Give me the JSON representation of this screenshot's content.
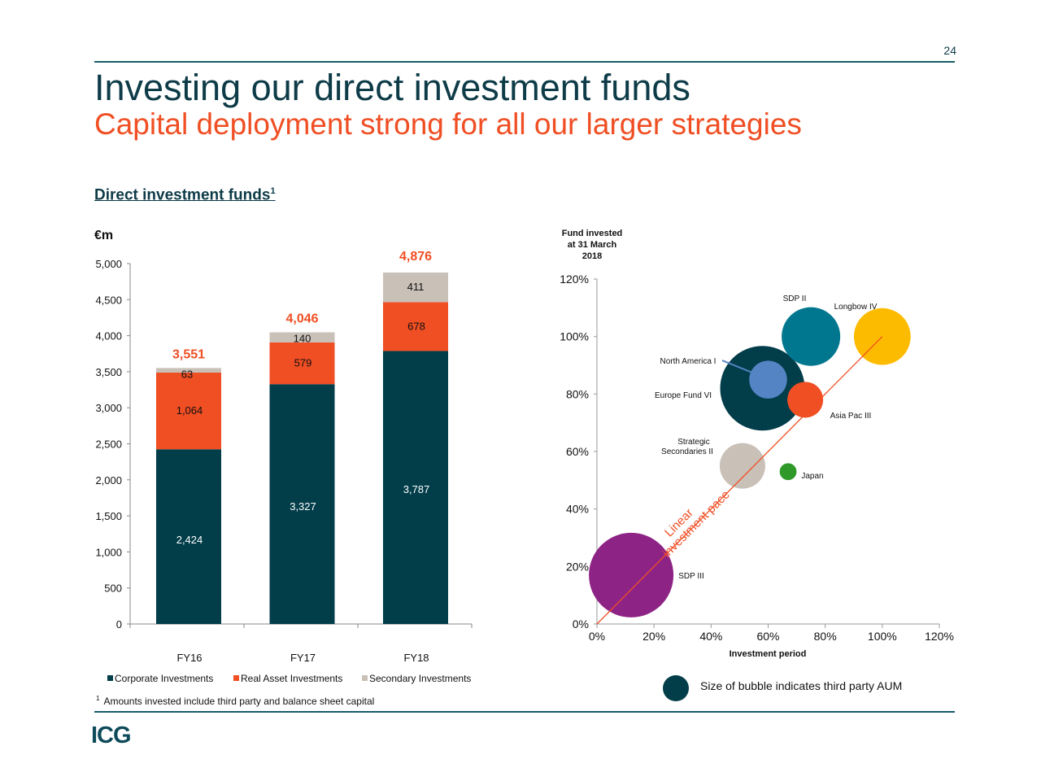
{
  "page_number": "24",
  "title": "Investing our direct investment funds",
  "subtitle": "Capital deployment strong for all our larger strategies",
  "section_heading": "Direct investment funds",
  "section_footnote_marker": "1",
  "footnote": {
    "marker": "1",
    "text": "Amounts invested include third party and balance sheet capital"
  },
  "logo": "ICG",
  "colors": {
    "brand_dark": "#0d3b47",
    "accent_orange": "#f04e23",
    "rule": "#1a5b6b"
  },
  "chart_data": [
    {
      "type": "bar",
      "stacked": true,
      "ylabel": "€m",
      "ylim": [
        0,
        5000
      ],
      "yticks": [
        "0",
        "500",
        "1,000",
        "1,500",
        "2,000",
        "2,500",
        "3,000",
        "3,500",
        "4,000",
        "4,500",
        "5,000"
      ],
      "categories": [
        "FY16",
        "FY17",
        "FY18"
      ],
      "series": [
        {
          "name": "Corporate Investments",
          "color": "#023d4a",
          "values": [
            2424,
            3327,
            3787
          ],
          "labels": [
            "2,424",
            "3,327",
            "3,787"
          ]
        },
        {
          "name": "Real Asset Investments",
          "color": "#f04e23",
          "values": [
            1064,
            579,
            678
          ],
          "labels": [
            "1,064",
            "579",
            "678"
          ]
        },
        {
          "name": "Secondary Investments",
          "color": "#c9c0b8",
          "values": [
            63,
            140,
            411
          ],
          "labels": [
            "63",
            "140",
            "411"
          ]
        }
      ],
      "totals": [
        "3,551",
        "4,046",
        "4,876"
      ],
      "grid": false,
      "legend": "bottom"
    },
    {
      "type": "scatter",
      "variant": "bubble",
      "title": "Fund invested at 31 March 2018",
      "title_lines": [
        "Fund invested",
        "at 31 March",
        "2018"
      ],
      "xlabel": "Investment period",
      "xlim": [
        0,
        120
      ],
      "ylim": [
        0,
        120
      ],
      "xticks": [
        "0%",
        "20%",
        "40%",
        "60%",
        "80%",
        "100%",
        "120%"
      ],
      "yticks": [
        "0%",
        "20%",
        "40%",
        "60%",
        "80%",
        "100%",
        "120%"
      ],
      "points": [
        {
          "name": "Europe Fund VI",
          "x": 58,
          "y": 82,
          "relative_size": 100,
          "color": "#023d4a"
        },
        {
          "name": "SDP III",
          "x": 12,
          "y": 17,
          "relative_size": 100,
          "color": "#8e2386"
        },
        {
          "name": "SDP II",
          "x": 75,
          "y": 100,
          "relative_size": 48,
          "color": "#00778f"
        },
        {
          "name": "Longbow IV",
          "x": 100,
          "y": 100,
          "relative_size": 45,
          "color": "#fdbb00"
        },
        {
          "name": "Strategic Secondaries II",
          "x": 51,
          "y": 55,
          "relative_size": 29,
          "color": "#c9c0b8"
        },
        {
          "name": "North America I",
          "x": 60,
          "y": 85,
          "relative_size": 20,
          "color": "#5584c4"
        },
        {
          "name": "Asia Pac III",
          "x": 73,
          "y": 78,
          "relative_size": 18,
          "color": "#f04e23"
        },
        {
          "name": "Japan",
          "x": 67,
          "y": 53,
          "relative_size": 4,
          "color": "#2f9a2a"
        }
      ],
      "reference_line": {
        "label": "Linear investment pace",
        "label_lines": [
          "Linear",
          "investment pace"
        ],
        "from": [
          0,
          0
        ],
        "to": [
          100,
          100
        ],
        "color": "#f04e23"
      },
      "legend_note": "Size of bubble indicates third party AUM",
      "grid": false
    }
  ]
}
